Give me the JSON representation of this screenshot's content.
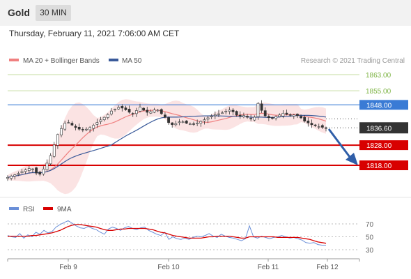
{
  "header": {
    "title": "Gold",
    "timeframe": "30 MIN"
  },
  "date_line": "Thursday, February 11, 2021 7:06:00 AM CET",
  "legend": {
    "series1": "MA 20 + Bollinger Bands",
    "series2": "MA 50"
  },
  "attribution": "Research © 2021 Trading Central",
  "colors": {
    "resistance": "#3a7bd5",
    "support": "#d80000",
    "target": "#7cb342",
    "current": "#333333",
    "band": "#fbe0e0",
    "ma20": "#f08080",
    "ma50": "#3a5a9a",
    "rsi": "#6a8fd8",
    "rsi_ma": "#d80000",
    "arrow": "#2f5ea8"
  },
  "chart_data": [
    {
      "type": "candlestick",
      "title": "",
      "ylim": [
        1800,
        1870
      ],
      "x_ticks": [
        "Feb 9",
        "Feb 10",
        "Feb 11",
        "Feb 12"
      ],
      "levels": [
        {
          "value": 1863.0,
          "label": "1863.00",
          "kind": "target"
        },
        {
          "value": 1855.0,
          "label": "1855.00",
          "kind": "target"
        },
        {
          "value": 1848.0,
          "label": "1848.00",
          "kind": "resistance"
        },
        {
          "value": 1836.6,
          "label": "1836.60",
          "kind": "current"
        },
        {
          "value": 1828.0,
          "label": "1828.00",
          "kind": "support"
        },
        {
          "value": 1818.0,
          "label": "1818.00",
          "kind": "support"
        }
      ],
      "series": [
        {
          "name": "MA 20 + Bollinger Bands",
          "kind": "ma_band"
        },
        {
          "name": "MA 50",
          "kind": "ma"
        }
      ],
      "price_path": [
        [
          0,
          1812
        ],
        [
          8,
          1813
        ],
        [
          16,
          1814
        ],
        [
          24,
          1815.5
        ],
        [
          32,
          1816.5
        ],
        [
          40,
          1816
        ],
        [
          44,
          1812
        ],
        [
          50,
          1815
        ],
        [
          56,
          1818
        ],
        [
          62,
          1822
        ],
        [
          68,
          1828
        ],
        [
          74,
          1834
        ],
        [
          80,
          1837
        ],
        [
          86,
          1840
        ],
        [
          92,
          1838.5
        ],
        [
          98,
          1837
        ],
        [
          104,
          1836
        ],
        [
          110,
          1835.5
        ],
        [
          116,
          1836
        ],
        [
          122,
          1837
        ],
        [
          130,
          1839
        ],
        [
          138,
          1841
        ],
        [
          146,
          1843
        ],
        [
          152,
          1845
        ],
        [
          158,
          1846
        ],
        [
          164,
          1847
        ],
        [
          170,
          1846
        ],
        [
          176,
          1845
        ],
        [
          182,
          1843
        ],
        [
          188,
          1845
        ],
        [
          194,
          1847
        ],
        [
          200,
          1845
        ],
        [
          206,
          1844
        ],
        [
          212,
          1845
        ],
        [
          218,
          1846
        ],
        [
          224,
          1844
        ],
        [
          230,
          1842
        ],
        [
          236,
          1839
        ],
        [
          242,
          1838
        ],
        [
          248,
          1839
        ],
        [
          254,
          1840
        ],
        [
          260,
          1839
        ],
        [
          266,
          1838.5
        ],
        [
          272,
          1838.5
        ],
        [
          278,
          1839
        ],
        [
          284,
          1840
        ],
        [
          290,
          1841
        ],
        [
          296,
          1842
        ],
        [
          302,
          1843
        ],
        [
          308,
          1843.5
        ],
        [
          314,
          1844
        ],
        [
          320,
          1845
        ],
        [
          326,
          1845.5
        ],
        [
          332,
          1844
        ],
        [
          338,
          1842
        ],
        [
          344,
          1843
        ],
        [
          350,
          1842
        ],
        [
          356,
          1841
        ],
        [
          362,
          1842
        ],
        [
          366,
          1849
        ],
        [
          370,
          1847
        ],
        [
          374,
          1843
        ],
        [
          380,
          1842
        ],
        [
          386,
          1841
        ],
        [
          392,
          1842
        ],
        [
          398,
          1843
        ],
        [
          404,
          1844
        ],
        [
          410,
          1843
        ],
        [
          416,
          1843
        ],
        [
          422,
          1843
        ],
        [
          428,
          1842
        ],
        [
          434,
          1840
        ],
        [
          440,
          1839
        ],
        [
          446,
          1838
        ],
        [
          452,
          1837.5
        ],
        [
          458,
          1837
        ],
        [
          466,
          1836.6
        ]
      ],
      "price_xrange": [
        0,
        466
      ]
    },
    {
      "type": "line",
      "title": "",
      "ylim": [
        20,
        80
      ],
      "yticks": [
        70,
        50,
        30
      ],
      "series": [
        {
          "name": "RSI",
          "values": [
            52,
            50,
            49,
            55,
            48,
            53,
            50,
            57,
            54,
            60,
            56,
            58,
            65,
            69,
            72,
            75,
            71,
            67,
            64,
            63,
            66,
            63,
            61,
            57,
            54,
            62,
            65,
            63,
            60,
            64,
            66,
            63,
            61,
            64,
            65,
            60,
            57,
            54,
            52,
            57,
            46,
            50,
            47,
            46,
            48,
            46,
            49,
            51,
            50,
            52,
            55,
            51,
            49,
            54,
            51,
            49,
            48,
            46,
            44,
            47,
            67,
            50,
            48,
            51,
            49,
            47,
            49,
            50,
            52,
            50,
            48,
            49,
            47,
            45,
            41,
            40,
            41,
            38,
            37,
            37
          ]
        },
        {
          "name": "9MA",
          "values": [
            51,
            51,
            51,
            51,
            51,
            51,
            52,
            52,
            53,
            54,
            55,
            56,
            58,
            60,
            63,
            66,
            68,
            69,
            69,
            68,
            67,
            66,
            65,
            63,
            61,
            60,
            60,
            61,
            62,
            62,
            63,
            63,
            63,
            63,
            63,
            62,
            61,
            59,
            57,
            56,
            54,
            52,
            51,
            50,
            49,
            48,
            48,
            48,
            48,
            49,
            50,
            50,
            51,
            51,
            51,
            51,
            50,
            49,
            48,
            48,
            50,
            50,
            50,
            50,
            50,
            50,
            50,
            49,
            49,
            49,
            49,
            49,
            49,
            48,
            47,
            46,
            44,
            42,
            41,
            40
          ]
        }
      ]
    }
  ]
}
